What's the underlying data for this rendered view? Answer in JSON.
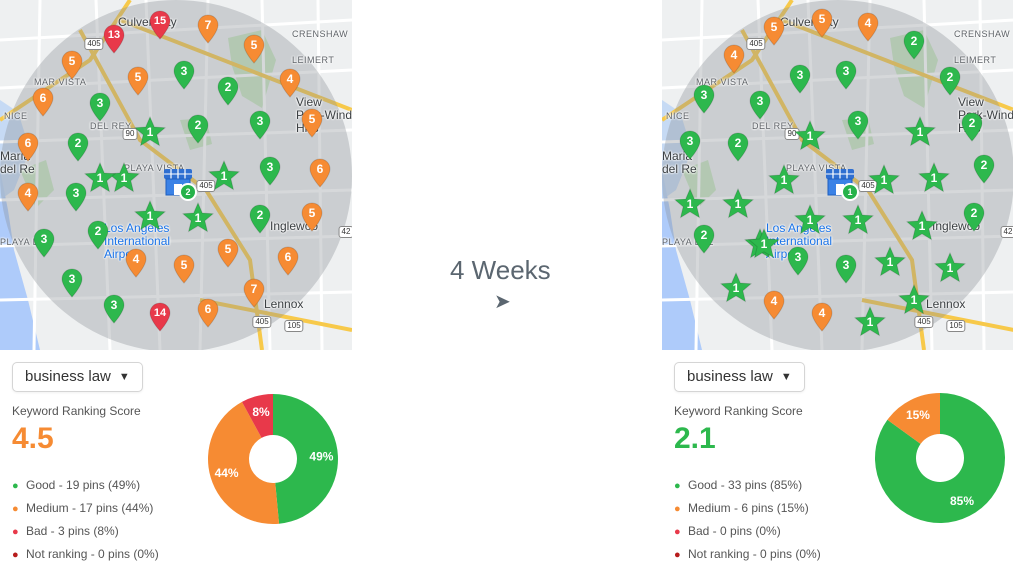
{
  "transition": {
    "label": "4 Weeks",
    "arrow": "➤"
  },
  "colors": {
    "good": "#2db84d",
    "medium": "#f68b33",
    "bad": "#e8394a",
    "not_ranking": "#b71c1c"
  },
  "map_labels": {
    "culver_city": "Culver City",
    "crenshaw": "CRENSHAW",
    "leimert": "LEIMERT",
    "mar_vista": "MAR VISTA",
    "view_park": "View\nPark-Windsor\nHills",
    "del_rey": "DEL REY",
    "playa_vista": "PLAYA VISTA",
    "marina": "Maria\ndel Re",
    "lax": "Los Angeles\nInternational\nAirport",
    "inglewood": "Inglewoo",
    "playa_del_rey": "PLAYA DEL",
    "lennox": "Lennox",
    "nice": "NICE",
    "shields": [
      "405",
      "90",
      "405",
      "405",
      "105",
      "42"
    ]
  },
  "left": {
    "keyword": "business law",
    "score_label": "Keyword Ranking Score",
    "score_value": "4.5",
    "score_color": "#f68b33",
    "legend": [
      {
        "kind": "good",
        "text": "Good - 19 pins (49%)"
      },
      {
        "kind": "medium",
        "text": "Medium - 17 pins (44%)"
      },
      {
        "kind": "bad",
        "text": "Bad - 3 pins (8%)"
      },
      {
        "kind": "not_ranking",
        "text": "Not ranking - 0 pins (0%)"
      }
    ],
    "chart_data": {
      "type": "pie",
      "categories": [
        "Good",
        "Medium",
        "Bad"
      ],
      "values": [
        49,
        44,
        8
      ],
      "labels": [
        "49%",
        "44%",
        "8%"
      ],
      "colors": [
        "#2db84d",
        "#f68b33",
        "#e8394a"
      ]
    },
    "store_badge": "2",
    "pins": [
      {
        "t": "o",
        "n": "5"
      },
      {
        "t": "o",
        "n": "6"
      },
      {
        "t": "g",
        "n": "3"
      },
      {
        "t": "r",
        "n": "13"
      },
      {
        "t": "r",
        "n": "15"
      },
      {
        "t": "o",
        "n": "7"
      },
      {
        "t": "o",
        "n": "5"
      },
      {
        "t": "o",
        "n": "5"
      },
      {
        "t": "g",
        "n": "3"
      },
      {
        "t": "g",
        "n": "2"
      },
      {
        "t": "o",
        "n": "4"
      },
      {
        "t": "o",
        "n": "5"
      },
      {
        "t": "g",
        "n": "2"
      },
      {
        "t": "g",
        "n": "3"
      },
      {
        "t": "o",
        "n": "6"
      },
      {
        "t": "g",
        "n": "2"
      },
      {
        "t": "g",
        "n": "3"
      },
      {
        "t": "o",
        "n": "6"
      },
      {
        "t": "o",
        "n": "4"
      },
      {
        "t": "g",
        "n": "3"
      },
      {
        "t": "g",
        "n": "2"
      },
      {
        "t": "o",
        "n": "5"
      },
      {
        "t": "g",
        "n": "3"
      },
      {
        "t": "g",
        "n": "2"
      },
      {
        "t": "o",
        "n": "4"
      },
      {
        "t": "o",
        "n": "5"
      },
      {
        "t": "o",
        "n": "5"
      },
      {
        "t": "o",
        "n": "6"
      },
      {
        "t": "g",
        "n": "3"
      },
      {
        "t": "g",
        "n": "3"
      },
      {
        "t": "r",
        "n": "14"
      },
      {
        "t": "o",
        "n": "6"
      },
      {
        "t": "o",
        "n": "7"
      }
    ],
    "stars": [
      {
        "n": "1"
      },
      {
        "n": "1"
      },
      {
        "n": "1"
      },
      {
        "n": "1"
      },
      {
        "n": "1"
      },
      {
        "n": "1"
      }
    ]
  },
  "right": {
    "keyword": "business law",
    "score_label": "Keyword Ranking Score",
    "score_value": "2.1",
    "score_color": "#2db84d",
    "legend": [
      {
        "kind": "good",
        "text": "Good - 33 pins (85%)"
      },
      {
        "kind": "medium",
        "text": "Medium - 6 pins (15%)"
      },
      {
        "kind": "bad",
        "text": "Bad - 0 pins (0%)"
      },
      {
        "kind": "not_ranking",
        "text": "Not ranking - 0 pins (0%)"
      }
    ],
    "chart_data": {
      "type": "pie",
      "categories": [
        "Good",
        "Medium"
      ],
      "values": [
        85,
        15
      ],
      "labels": [
        "85%",
        "15%"
      ],
      "colors": [
        "#2db84d",
        "#f68b33"
      ]
    },
    "store_badge": "1",
    "pins": [
      {
        "t": "o",
        "n": "5"
      },
      {
        "t": "o",
        "n": "5"
      },
      {
        "t": "o",
        "n": "4"
      },
      {
        "t": "o",
        "n": "4"
      },
      {
        "t": "g",
        "n": "3"
      },
      {
        "t": "g",
        "n": "3"
      },
      {
        "t": "g",
        "n": "3"
      },
      {
        "t": "g",
        "n": "3"
      },
      {
        "t": "g",
        "n": "2"
      },
      {
        "t": "g",
        "n": "2"
      },
      {
        "t": "g",
        "n": "3"
      },
      {
        "t": "g",
        "n": "2"
      },
      {
        "t": "g",
        "n": "3"
      },
      {
        "t": "g",
        "n": "2"
      },
      {
        "t": "g",
        "n": "2"
      },
      {
        "t": "g",
        "n": "2"
      },
      {
        "t": "g",
        "n": "2"
      },
      {
        "t": "g",
        "n": "3"
      },
      {
        "t": "g",
        "n": "3"
      },
      {
        "t": "o",
        "n": "4"
      },
      {
        "t": "o",
        "n": "4"
      }
    ],
    "stars": [
      {
        "n": "1"
      },
      {
        "n": "1"
      },
      {
        "n": "1"
      },
      {
        "n": "1"
      },
      {
        "n": "1"
      },
      {
        "n": "1"
      },
      {
        "n": "1"
      },
      {
        "n": "1"
      },
      {
        "n": "1"
      },
      {
        "n": "1"
      },
      {
        "n": "1"
      },
      {
        "n": "1"
      },
      {
        "n": "1"
      },
      {
        "n": "1"
      },
      {
        "n": "1"
      },
      {
        "n": "1"
      },
      {
        "n": "1"
      }
    ]
  }
}
